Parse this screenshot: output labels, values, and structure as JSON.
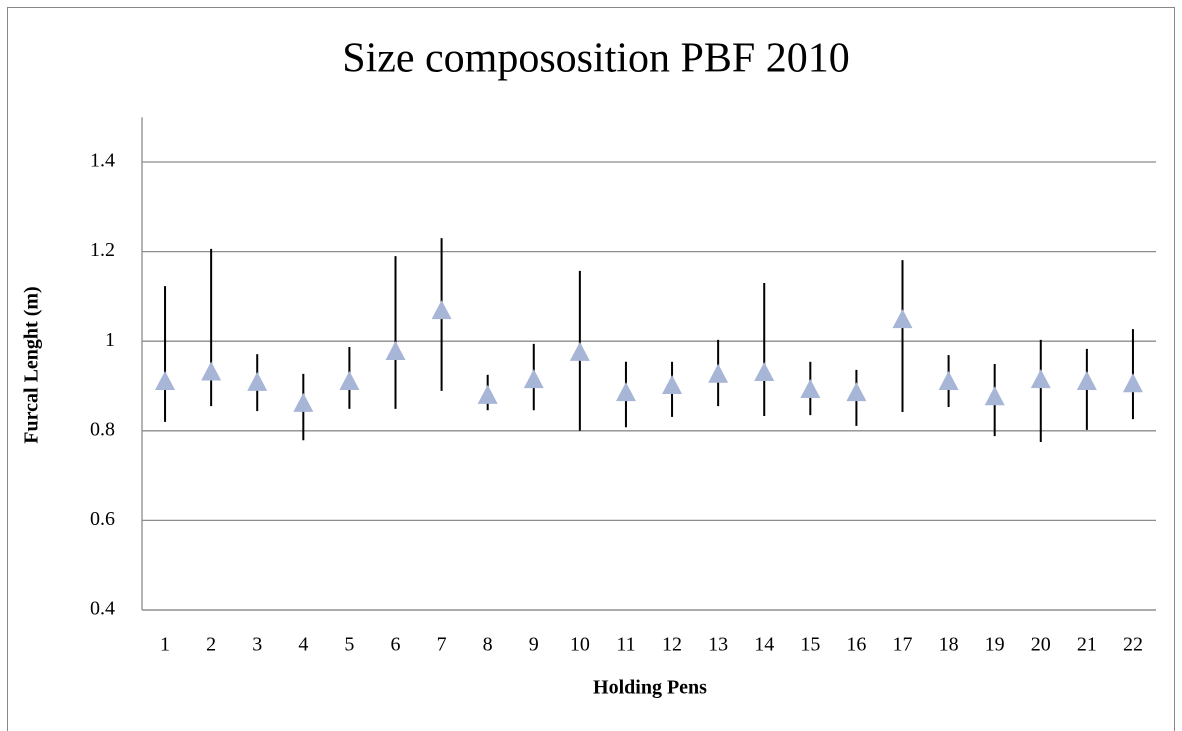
{
  "chart_data": {
    "type": "errorbar",
    "title": "Size compososition PBF 2010",
    "x_label": "Holding Pens",
    "y_label": "Furcal Lenght (m)",
    "categories": [
      "1",
      "2",
      "3",
      "4",
      "5",
      "6",
      "7",
      "8",
      "9",
      "10",
      "11",
      "12",
      "13",
      "14",
      "15",
      "16",
      "17",
      "18",
      "19",
      "20",
      "21",
      "22"
    ],
    "values": [
      0.909,
      0.93,
      0.907,
      0.86,
      0.909,
      0.976,
      1.067,
      0.878,
      0.913,
      0.974,
      0.884,
      0.9,
      0.925,
      0.929,
      0.891,
      0.884,
      1.047,
      0.909,
      0.875,
      0.913,
      0.909,
      0.904
    ],
    "lows": [
      0.82,
      0.855,
      0.844,
      0.779,
      0.849,
      0.849,
      0.889,
      0.846,
      0.846,
      0.8,
      0.808,
      0.831,
      0.855,
      0.833,
      0.835,
      0.811,
      0.842,
      0.853,
      0.788,
      0.775,
      0.802,
      0.826
    ],
    "highs": [
      1.123,
      1.206,
      0.971,
      0.927,
      0.987,
      1.19,
      1.23,
      0.925,
      0.994,
      1.157,
      0.954,
      0.954,
      1.003,
      1.13,
      0.954,
      0.936,
      1.181,
      0.969,
      0.949,
      1.003,
      0.983,
      1.027
    ],
    "color": "#a7b5d6",
    "error_color": "#000000",
    "ylim": [
      0.4,
      1.5
    ],
    "yticks": [
      0.4,
      0.6,
      0.8,
      1,
      1.2,
      1.4
    ],
    "grid": true
  }
}
